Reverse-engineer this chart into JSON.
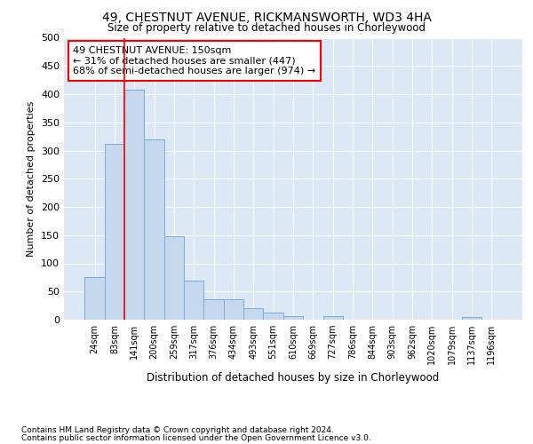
{
  "title1": "49, CHESTNUT AVENUE, RICKMANSWORTH, WD3 4HA",
  "title2": "Size of property relative to detached houses in Chorleywood",
  "xlabel": "Distribution of detached houses by size in Chorleywood",
  "ylabel": "Number of detached properties",
  "bar_color": "#c5d8ee",
  "bar_edge_color": "#7aacda",
  "categories": [
    "24sqm",
    "83sqm",
    "141sqm",
    "200sqm",
    "259sqm",
    "317sqm",
    "376sqm",
    "434sqm",
    "493sqm",
    "551sqm",
    "610sqm",
    "669sqm",
    "727sqm",
    "786sqm",
    "844sqm",
    "903sqm",
    "962sqm",
    "1020sqm",
    "1079sqm",
    "1137sqm",
    "1196sqm"
  ],
  "values": [
    75,
    312,
    408,
    320,
    148,
    70,
    36,
    36,
    20,
    12,
    6,
    0,
    6,
    0,
    0,
    0,
    0,
    0,
    0,
    5,
    0
  ],
  "ylim": [
    0,
    500
  ],
  "yticks": [
    0,
    50,
    100,
    150,
    200,
    250,
    300,
    350,
    400,
    450,
    500
  ],
  "property_line_index": 2,
  "annotation_text": "49 CHESTNUT AVENUE: 150sqm\n← 31% of detached houses are smaller (447)\n68% of semi-detached houses are larger (974) →",
  "footer1": "Contains HM Land Registry data © Crown copyright and database right 2024.",
  "footer2": "Contains public sector information licensed under the Open Government Licence v3.0.",
  "background_color": "#ffffff",
  "plot_bg_color": "#dce8f5"
}
